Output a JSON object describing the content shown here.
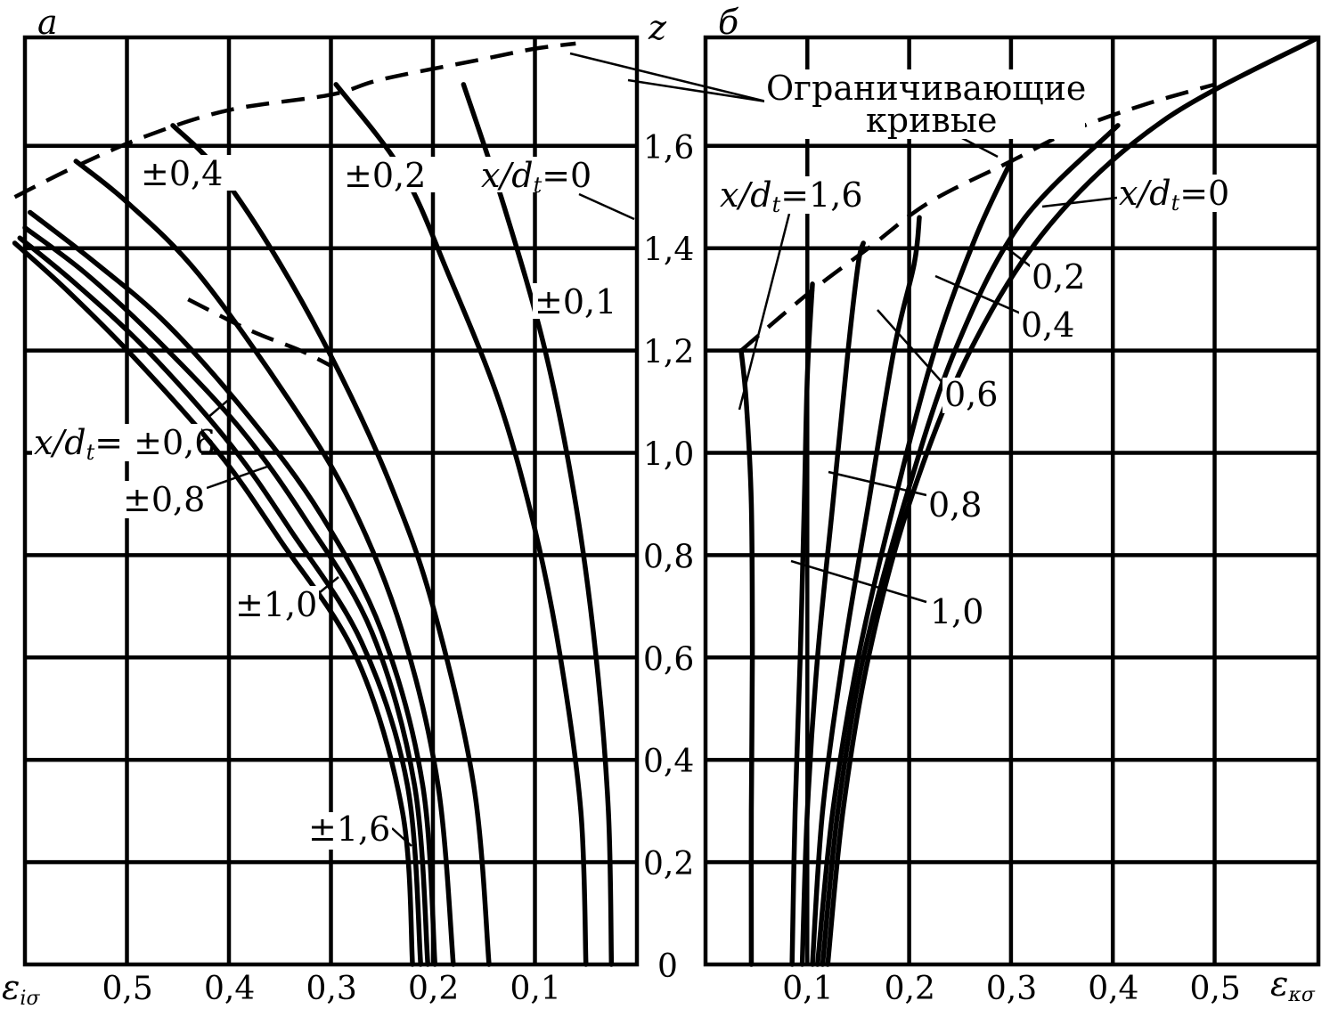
{
  "chart_data": [
    {
      "panel_label": "a",
      "type": "line",
      "xlabel": "ε_iσ",
      "ylabel": "z_п/",
      "x_reversed": true,
      "xlim": [
        0.61,
        0.0
      ],
      "ylim": [
        0.0,
        1.82
      ],
      "x_ticks": [
        "0,5",
        "0,4",
        "0,3",
        "0,2",
        "0,1"
      ],
      "x_tick_values": [
        0.5,
        0.4,
        0.3,
        0.2,
        0.1
      ],
      "y_ticks": [
        "0",
        "0,2",
        "0,4",
        "0,6",
        "0,8",
        "1,0",
        "1,2",
        "1,4",
        "1,6"
      ],
      "y_tick_values": [
        0.0,
        0.2,
        0.4,
        0.6,
        0.8,
        1.0,
        1.2,
        1.4,
        1.6
      ],
      "grid": true,
      "series": [
        {
          "name": "x/d_t=0",
          "points": [
            [
              0.025,
              0.0
            ],
            [
              0.028,
              0.3
            ],
            [
              0.04,
              0.6
            ],
            [
              0.06,
              0.9
            ],
            [
              0.09,
              1.2
            ],
            [
              0.13,
              1.48
            ],
            [
              0.17,
              1.72
            ]
          ]
        },
        {
          "name": "±0,1",
          "points": [
            [
              0.05,
              0.0
            ],
            [
              0.055,
              0.3
            ],
            [
              0.075,
              0.6
            ],
            [
              0.1,
              0.85
            ],
            [
              0.135,
              1.1
            ],
            [
              0.185,
              1.35
            ],
            [
              0.23,
              1.55
            ],
            [
              0.295,
              1.72
            ]
          ]
        },
        {
          "name": "±0,2",
          "points": [
            [
              0.145,
              0.0
            ],
            [
              0.16,
              0.35
            ],
            [
              0.2,
              0.7
            ],
            [
              0.24,
              0.93
            ],
            [
              0.29,
              1.15
            ],
            [
              0.35,
              1.37
            ],
            [
              0.41,
              1.55
            ],
            [
              0.455,
              1.64
            ]
          ]
        },
        {
          "name": "±0,4",
          "points": [
            [
              0.18,
              0.0
            ],
            [
              0.195,
              0.35
            ],
            [
              0.23,
              0.65
            ],
            [
              0.28,
              0.9
            ],
            [
              0.34,
              1.1
            ],
            [
              0.43,
              1.35
            ],
            [
              0.5,
              1.49
            ],
            [
              0.55,
              1.57
            ]
          ]
        },
        {
          "name": "x/d_t=±0,6",
          "points": [
            [
              0.198,
              0.0
            ],
            [
              0.21,
              0.35
            ],
            [
              0.25,
              0.65
            ],
            [
              0.31,
              0.88
            ],
            [
              0.38,
              1.07
            ],
            [
              0.46,
              1.25
            ],
            [
              0.53,
              1.37
            ],
            [
              0.595,
              1.47
            ]
          ]
        },
        {
          "name": "±0,8",
          "points": [
            [
              0.205,
              0.0
            ],
            [
              0.218,
              0.35
            ],
            [
              0.26,
              0.65
            ],
            [
              0.325,
              0.87
            ],
            [
              0.39,
              1.05
            ],
            [
              0.47,
              1.22
            ],
            [
              0.54,
              1.35
            ],
            [
              0.6,
              1.44
            ]
          ]
        },
        {
          "name": "±1,0",
          "points": [
            [
              0.212,
              0.0
            ],
            [
              0.225,
              0.35
            ],
            [
              0.27,
              0.63
            ],
            [
              0.34,
              0.85
            ],
            [
              0.4,
              1.02
            ],
            [
              0.48,
              1.2
            ],
            [
              0.55,
              1.33
            ],
            [
              0.605,
              1.42
            ]
          ]
        },
        {
          "name": "±1,6",
          "points": [
            [
              0.22,
              0.0
            ],
            [
              0.23,
              0.3
            ],
            [
              0.275,
              0.6
            ],
            [
              0.35,
              0.83
            ],
            [
              0.41,
              1.0
            ],
            [
              0.49,
              1.18
            ],
            [
              0.56,
              1.32
            ],
            [
              0.61,
              1.41
            ]
          ]
        }
      ],
      "limiting_curves": [
        {
          "points": [
            [
              0.61,
              1.5
            ],
            [
              0.55,
              1.56
            ],
            [
              0.48,
              1.62
            ],
            [
              0.4,
              1.67
            ],
            [
              0.3,
              1.7
            ],
            [
              0.25,
              1.73
            ],
            [
              0.15,
              1.77
            ],
            [
              0.1,
              1.79
            ],
            [
              0.06,
              1.8
            ]
          ]
        },
        {
          "points": [
            [
              0.44,
              1.3
            ],
            [
              0.38,
              1.24
            ],
            [
              0.33,
              1.2
            ],
            [
              0.3,
              1.17
            ]
          ]
        }
      ],
      "annotations": [
        "x/d_t=0",
        "±0,1",
        "±0,2",
        "±0,4",
        "x/d_t= ±0,6",
        "±0,8",
        "±1,0",
        "±1,6"
      ]
    },
    {
      "panel_label": "б",
      "type": "line",
      "xlabel": "ε_κσ",
      "xlim": [
        0.0,
        0.61
      ],
      "ylim": [
        0.0,
        1.82
      ],
      "x_ticks": [
        "0,1",
        "0,2",
        "0,3",
        "0,4",
        "0,5"
      ],
      "x_tick_values": [
        0.1,
        0.2,
        0.3,
        0.4,
        0.5
      ],
      "grid": true,
      "series": [
        {
          "name": "x/d_t=0",
          "points": [
            [
              0.12,
              0.0
            ],
            [
              0.135,
              0.3
            ],
            [
              0.16,
              0.6
            ],
            [
              0.2,
              0.9
            ],
            [
              0.26,
              1.2
            ],
            [
              0.34,
              1.45
            ],
            [
              0.45,
              1.65
            ],
            [
              0.6,
              1.81
            ]
          ]
        },
        {
          "name": "0,2",
          "points": [
            [
              0.115,
              0.0
            ],
            [
              0.13,
              0.3
            ],
            [
              0.155,
              0.6
            ],
            [
              0.195,
              0.9
            ],
            [
              0.245,
              1.2
            ],
            [
              0.31,
              1.45
            ],
            [
              0.405,
              1.64
            ]
          ]
        },
        {
          "name": "0,4",
          "points": [
            [
              0.11,
              0.0
            ],
            [
              0.125,
              0.3
            ],
            [
              0.15,
              0.6
            ],
            [
              0.185,
              0.9
            ],
            [
              0.225,
              1.2
            ],
            [
              0.265,
              1.42
            ],
            [
              0.3,
              1.57
            ]
          ]
        },
        {
          "name": "0,6",
          "points": [
            [
              0.105,
              0.0
            ],
            [
              0.115,
              0.3
            ],
            [
              0.135,
              0.6
            ],
            [
              0.16,
              0.9
            ],
            [
              0.185,
              1.2
            ],
            [
              0.205,
              1.37
            ],
            [
              0.21,
              1.46
            ]
          ]
        },
        {
          "name": "0,8",
          "points": [
            [
              0.095,
              0.0
            ],
            [
              0.1,
              0.3
            ],
            [
              0.11,
              0.6
            ],
            [
              0.125,
              0.9
            ],
            [
              0.14,
              1.2
            ],
            [
              0.15,
              1.37
            ],
            [
              0.155,
              1.41
            ]
          ]
        },
        {
          "name": "1,0",
          "points": [
            [
              0.085,
              0.0
            ],
            [
              0.088,
              0.3
            ],
            [
              0.093,
              0.6
            ],
            [
              0.097,
              0.9
            ],
            [
              0.1,
              1.15
            ],
            [
              0.105,
              1.33
            ]
          ]
        },
        {
          "name": "x/d_t=1,6",
          "points": [
            [
              0.045,
              0.0
            ],
            [
              0.045,
              0.3
            ],
            [
              0.046,
              0.6
            ],
            [
              0.045,
              0.9
            ],
            [
              0.04,
              1.1
            ],
            [
              0.035,
              1.2
            ]
          ]
        }
      ],
      "limiting_curves": [
        {
          "points": [
            [
              0.035,
              1.2
            ],
            [
              0.1,
              1.31
            ],
            [
              0.16,
              1.4
            ],
            [
              0.22,
              1.49
            ],
            [
              0.3,
              1.57
            ],
            [
              0.36,
              1.63
            ],
            [
              0.43,
              1.68
            ],
            [
              0.5,
              1.72
            ]
          ]
        }
      ],
      "annotations": [
        "Ограничивающие",
        "кривые",
        "x/d_t=0",
        "0,2",
        "0,4",
        "0,6",
        "0,8",
        "1,0",
        "x/d_t=1,6"
      ]
    }
  ]
}
